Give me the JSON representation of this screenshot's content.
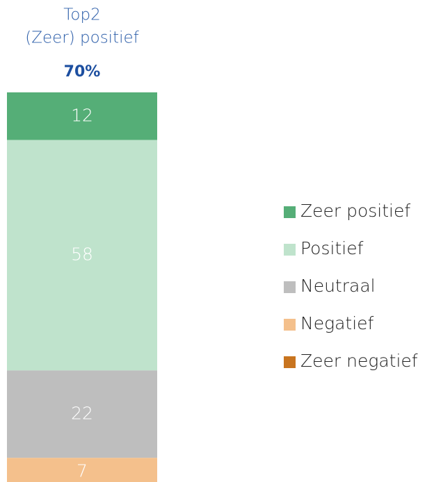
{
  "chart_data": {
    "type": "stacked-bar",
    "annotation": {
      "lines": [
        "Top2",
        "(Zeer) positief"
      ],
      "value": 70,
      "value_label": "70%"
    },
    "categories": [
      null
    ],
    "series": [
      {
        "name": "Zeer positief",
        "color": "#55ae77",
        "values": [
          12
        ]
      },
      {
        "name": "Positief",
        "color": "#bfe3cc",
        "values": [
          58
        ]
      },
      {
        "name": "Neutraal",
        "color": "#bebebe",
        "values": [
          22
        ]
      },
      {
        "name": "Negatief",
        "color": "#f4c08c",
        "values": [
          7
        ]
      },
      {
        "name": "Zeer negatief",
        "color": "#c8741f",
        "values": [
          1
        ],
        "value_labels": [
          null
        ]
      }
    ]
  }
}
